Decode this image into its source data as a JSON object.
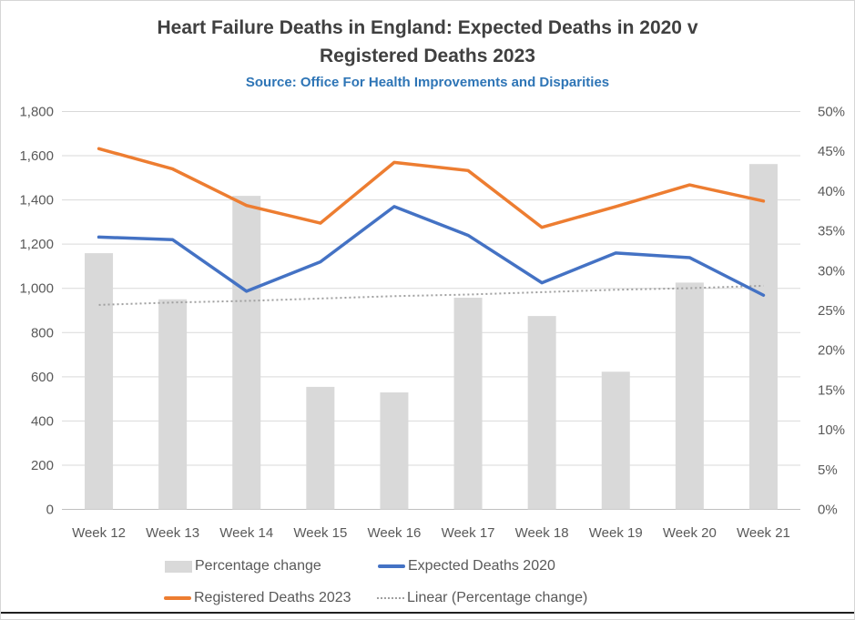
{
  "title": {
    "line1": "Heart Failure Deaths in England: Expected Deaths in 2020 v",
    "line2": "Registered Deaths 2023"
  },
  "subtitle": "Source: Office For Health Improvements and Disparities",
  "colors": {
    "bar": "#d9d9d9",
    "expected_line": "#4472c4",
    "registered_line": "#ed7d31",
    "trend_line": "#a0a0a0",
    "gridline": "#d9d9d9",
    "axis_line": "#bfbfbf",
    "title_text": "#404040",
    "subtitle_text": "#2e75b6",
    "axis_text": "#595959",
    "legend_text": "#595959"
  },
  "legend": {
    "items": [
      {
        "label": "Percentage change",
        "swatch": "bar"
      },
      {
        "label": "Expected Deaths 2020",
        "swatch": "line-blue"
      },
      {
        "label": "Registered Deaths 2023",
        "swatch": "line-orange"
      },
      {
        "label": "Linear (Percentage change)",
        "swatch": "dotted"
      }
    ]
  },
  "chart_data": {
    "type": "combo",
    "title": "Heart Failure Deaths in England: Expected Deaths in 2020 v Registered Deaths 2023",
    "subtitle": "Source: Office For Health Improvements and Disparities",
    "categories": [
      "Week 12",
      "Week 13",
      "Week 14",
      "Week 15",
      "Week 16",
      "Week 17",
      "Week 18",
      "Week 19",
      "Week 20",
      "Week 21"
    ],
    "series": [
      {
        "name": "Percentage change",
        "type": "bar",
        "axis": "right",
        "unit": "%",
        "values": [
          32.2,
          26.4,
          39.4,
          15.4,
          14.7,
          26.6,
          24.3,
          17.3,
          28.5,
          43.4
        ]
      },
      {
        "name": "Expected Deaths 2020",
        "type": "line",
        "axis": "left",
        "unit": "deaths",
        "values": [
          1232,
          1220,
          987,
          1120,
          1370,
          1240,
          1025,
          1160,
          1139,
          969
        ]
      },
      {
        "name": "Registered Deaths 2023",
        "type": "line",
        "axis": "left",
        "unit": "deaths",
        "values": [
          1632,
          1540,
          1375,
          1295,
          1570,
          1533,
          1276,
          1370,
          1468,
          1395
        ]
      },
      {
        "name": "Linear (Percentage change)",
        "type": "trendline",
        "axis": "right",
        "unit": "%",
        "values": [
          25.7,
          26.0,
          26.2,
          26.5,
          26.8,
          27.0,
          27.3,
          27.6,
          27.8,
          28.1
        ]
      }
    ],
    "left_axis": {
      "min": 0,
      "max": 1800,
      "step": 200,
      "ticks": [
        "0",
        "200",
        "400",
        "600",
        "800",
        "1,000",
        "1,200",
        "1,400",
        "1,600",
        "1,800"
      ]
    },
    "right_axis": {
      "min": 0,
      "max": 50,
      "step": 5,
      "ticks": [
        "0%",
        "5%",
        "10%",
        "15%",
        "20%",
        "25%",
        "30%",
        "35%",
        "40%",
        "45%",
        "50%"
      ]
    },
    "grid": "horizontal",
    "legend_position": "bottom"
  }
}
